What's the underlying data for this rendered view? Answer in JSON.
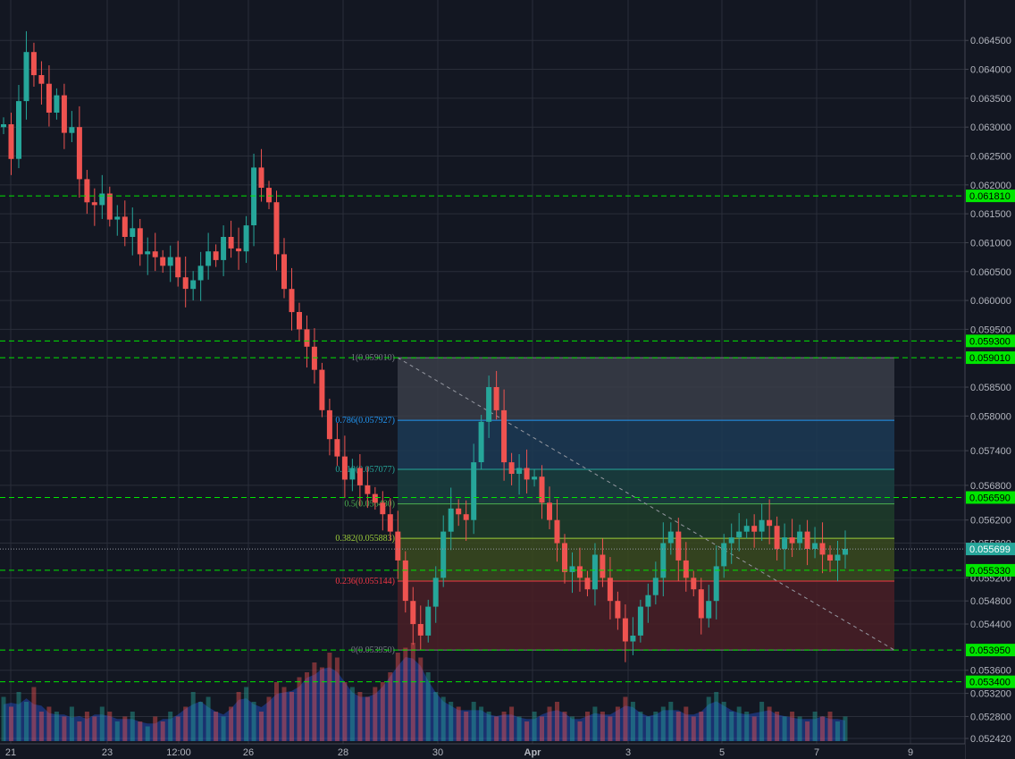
{
  "chart_data": {
    "type": "candlestick",
    "price_axis": {
      "ticks": [
        "0.064500",
        "0.064000",
        "0.063500",
        "0.063000",
        "0.062500",
        "0.062000",
        "0.061500",
        "0.061000",
        "0.060500",
        "0.060000",
        "0.059500",
        "0.058500",
        "0.058000",
        "0.057400",
        "0.056800",
        "0.056200",
        "0.055800",
        "0.055200",
        "0.054800",
        "0.054400",
        "0.053600",
        "0.053200",
        "0.052800",
        "0.052420"
      ],
      "range": [
        0.05242,
        0.0652
      ]
    },
    "time_axis": {
      "labels": [
        "21",
        "23",
        "12:00",
        "26",
        "28",
        "30",
        "Apr",
        "3",
        "5",
        "7",
        "9"
      ],
      "bold_labels": [
        "Apr"
      ]
    },
    "horizontal_levels": [
      {
        "value": 0.06181,
        "label": "0.061810"
      },
      {
        "value": 0.0593,
        "label": "0.059300"
      },
      {
        "value": 0.05901,
        "label": "0.059010"
      },
      {
        "value": 0.05659,
        "label": "0.056590"
      },
      {
        "value": 0.05533,
        "label": "0.055330"
      },
      {
        "value": 0.05395,
        "label": "0.053950"
      },
      {
        "value": 0.0534,
        "label": "0.053400"
      }
    ],
    "last_price": {
      "value": 0.055699,
      "label": "0.055699"
    },
    "fibonacci": {
      "high": 0.05901,
      "low": 0.05395,
      "levels": [
        {
          "ratio": "1",
          "value": 0.05901,
          "label": "1(0.059010)",
          "color": "#787b86",
          "fill": "#3a3d48"
        },
        {
          "ratio": "0.786",
          "value": 0.057927,
          "label": "0.786(0.057927)",
          "color": "#2196f3",
          "fill": "#1c3a55"
        },
        {
          "ratio": "0.618",
          "value": 0.057077,
          "label": "0.618(0.057077)",
          "color": "#26a69a",
          "fill": "#1a4040"
        },
        {
          "ratio": "0.5",
          "value": 0.05648,
          "label": "0.5(0.056480)",
          "color": "#4caf50",
          "fill": "#1f3d2a"
        },
        {
          "ratio": "0.382",
          "value": 0.055883,
          "label": "0.382(0.055883)",
          "color": "#9ccc3a",
          "fill": "#3a4a1f"
        },
        {
          "ratio": "0.236",
          "value": 0.055144,
          "label": "0.236(0.055144)",
          "color": "#f23645",
          "fill": "#4a1f26"
        },
        {
          "ratio": "0",
          "value": 0.05395,
          "label": "0(0.053950)",
          "color": "#787b86",
          "fill": "#4a1f26"
        }
      ]
    },
    "colors": {
      "background": "#131722",
      "grid": "#2a2e39",
      "up": "#26a69a",
      "down": "#ef5350",
      "level_line": "#00e600",
      "level_label_bg": "#00e600",
      "volume_area": "#2962ff",
      "axis_text": "#b2b5be"
    },
    "candles_close": [
      0.06305,
      0.06245,
      0.06345,
      0.0643,
      0.0639,
      0.06375,
      0.06325,
      0.06355,
      0.0629,
      0.063,
      0.0621,
      0.0617,
      0.06165,
      0.06185,
      0.0614,
      0.06145,
      0.0611,
      0.06125,
      0.0608,
      0.06085,
      0.06075,
      0.0606,
      0.06075,
      0.0604,
      0.0602,
      0.06035,
      0.0606,
      0.06085,
      0.0607,
      0.0611,
      0.0609,
      0.06085,
      0.0613,
      0.0623,
      0.06195,
      0.0617,
      0.0608,
      0.0602,
      0.0598,
      0.0595,
      0.0592,
      0.0588,
      0.0581,
      0.0576,
      0.0573,
      0.0569,
      0.0571,
      0.0568,
      0.05665,
      0.0565,
      0.0563,
      0.056,
      0.0555,
      0.0548,
      0.0544,
      0.0542,
      0.0547,
      0.0552,
      0.056,
      0.0564,
      0.0563,
      0.0562,
      0.0572,
      0.0579,
      0.0585,
      0.0581,
      0.0572,
      0.057,
      0.0571,
      0.0569,
      0.05695,
      0.0565,
      0.0562,
      0.0558,
      0.0553,
      0.0554,
      0.0552,
      0.055,
      0.0556,
      0.0552,
      0.0548,
      0.0545,
      0.0541,
      0.0542,
      0.0547,
      0.0549,
      0.0552,
      0.0558,
      0.056,
      0.0555,
      0.0552,
      0.055,
      0.0545,
      0.0548,
      0.0554,
      0.0558,
      0.0559,
      0.056,
      0.0561,
      0.056,
      0.0562,
      0.0561,
      0.0557,
      0.0559,
      0.0558,
      0.056,
      0.0557,
      0.0558,
      0.0556,
      0.0555,
      0.0556,
      0.0557
    ],
    "volume_rel": [
      0.45,
      0.35,
      0.5,
      0.4,
      0.55,
      0.3,
      0.35,
      0.3,
      0.25,
      0.35,
      0.2,
      0.3,
      0.25,
      0.35,
      0.3,
      0.2,
      0.25,
      0.3,
      0.2,
      0.15,
      0.25,
      0.2,
      0.3,
      0.25,
      0.35,
      0.5,
      0.4,
      0.45,
      0.3,
      0.25,
      0.35,
      0.5,
      0.55,
      0.4,
      0.3,
      0.45,
      0.6,
      0.55,
      0.5,
      0.65,
      0.7,
      0.8,
      0.75,
      0.9,
      0.85,
      0.6,
      0.55,
      0.5,
      0.45,
      0.55,
      0.6,
      0.7,
      0.9,
      0.95,
      1.0,
      0.85,
      0.7,
      0.5,
      0.45,
      0.4,
      0.35,
      0.3,
      0.4,
      0.35,
      0.3,
      0.25,
      0.3,
      0.35,
      0.25,
      0.2,
      0.3,
      0.25,
      0.35,
      0.4,
      0.3,
      0.25,
      0.2,
      0.3,
      0.35,
      0.3,
      0.25,
      0.35,
      0.45,
      0.4,
      0.3,
      0.25,
      0.3,
      0.35,
      0.4,
      0.3,
      0.35,
      0.25,
      0.3,
      0.45,
      0.5,
      0.4,
      0.3,
      0.35,
      0.3,
      0.25,
      0.4,
      0.35,
      0.3,
      0.25,
      0.3,
      0.25,
      0.2,
      0.3,
      0.25,
      0.3,
      0.2,
      0.25
    ]
  }
}
